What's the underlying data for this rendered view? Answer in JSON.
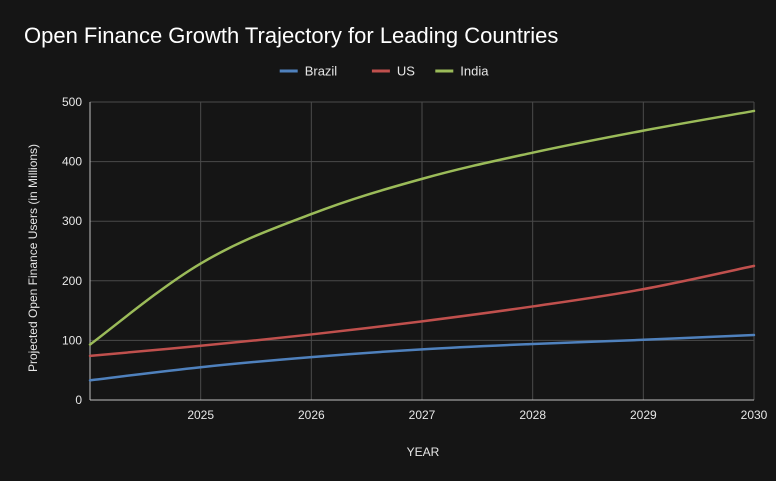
{
  "chart_data": {
    "type": "line",
    "title": "Open Finance Growth Trajectory for Leading Countries",
    "xlabel": "YEAR",
    "ylabel": "Projected Open Finance Users (in Millions)",
    "x": [
      2024,
      2025,
      2026,
      2027,
      2028,
      2029,
      2030
    ],
    "xticks": [
      2025,
      2026,
      2027,
      2028,
      2029,
      2030
    ],
    "yticks": [
      0,
      100,
      200,
      300,
      400,
      500
    ],
    "xlim": [
      2024,
      2030
    ],
    "ylim": [
      0,
      500
    ],
    "grid": true,
    "legend_position": "top-center",
    "series": [
      {
        "name": "Brazil",
        "color": "#4f81bd",
        "values": [
          33,
          55,
          72,
          85,
          94,
          101,
          109
        ]
      },
      {
        "name": "US",
        "color": "#c0504d",
        "values": [
          74,
          91,
          110,
          132,
          157,
          186,
          225
        ]
      },
      {
        "name": "India",
        "color": "#9bbb59",
        "values": [
          93,
          229,
          312,
          371,
          415,
          452,
          485
        ]
      }
    ]
  }
}
